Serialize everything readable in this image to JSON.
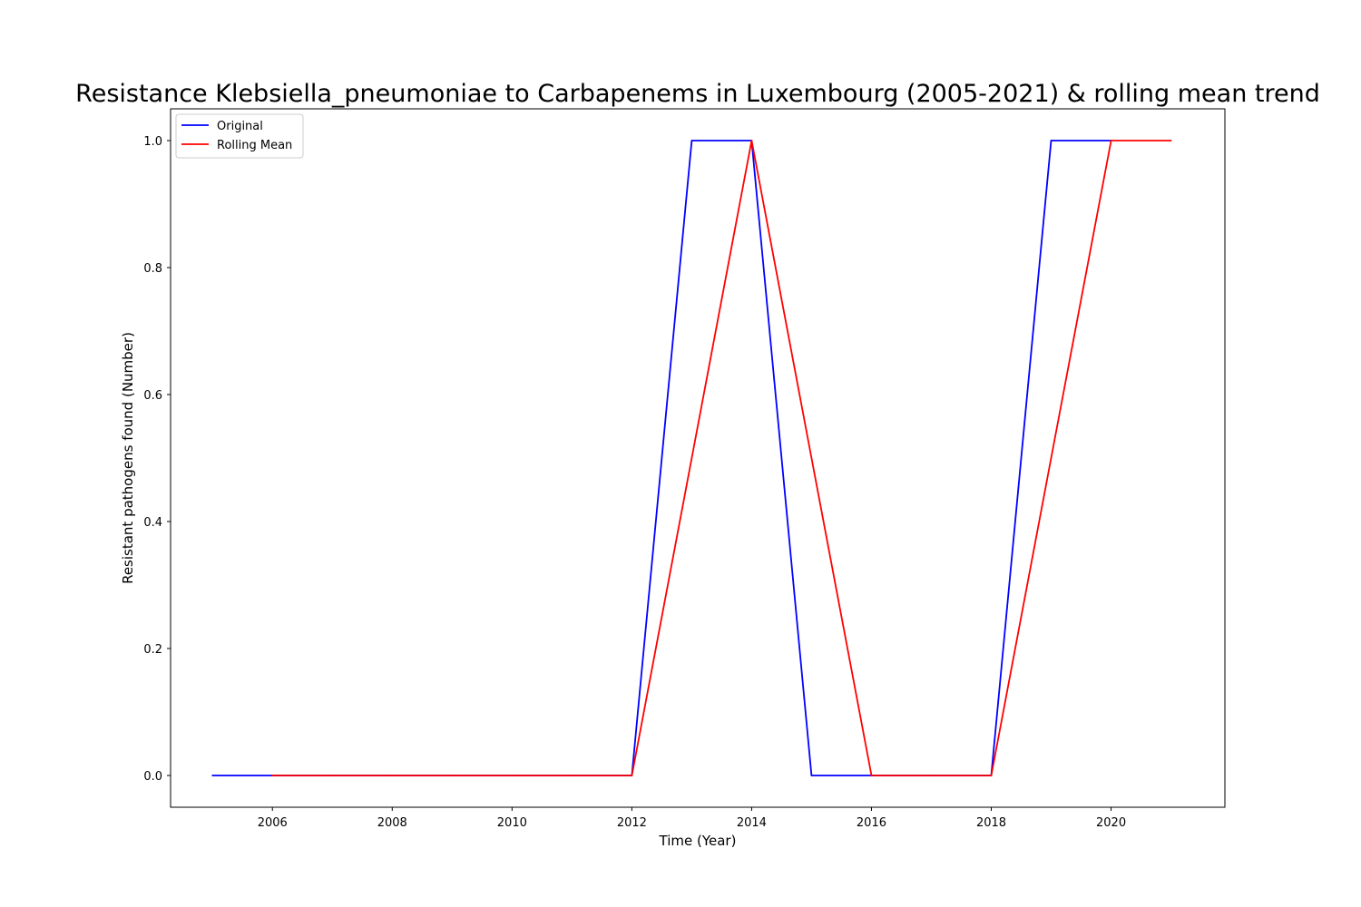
{
  "chart_data": {
    "type": "line",
    "title": "Resistance Klebsiella_pneumoniae to Carbapenems in Luxembourg (2005-2021) & rolling mean trend",
    "xlabel": "Time (Year)",
    "ylabel": "Resistant pathogens found (Number)",
    "xlim": [
      2004.3,
      2021.9
    ],
    "ylim": [
      -0.05,
      1.05
    ],
    "x_ticks": [
      2006,
      2008,
      2010,
      2012,
      2014,
      2016,
      2018,
      2020
    ],
    "x_tick_labels": [
      "2006",
      "2008",
      "2010",
      "2012",
      "2014",
      "2016",
      "2018",
      "2020"
    ],
    "y_ticks": [
      0.0,
      0.2,
      0.4,
      0.6,
      0.8,
      1.0
    ],
    "y_tick_labels": [
      "0.0",
      "0.2",
      "0.4",
      "0.6",
      "0.8",
      "1.0"
    ],
    "grid": false,
    "legend_position": "top-left",
    "series": [
      {
        "name": "Original",
        "color": "#0000ff",
        "x": [
          2005,
          2006,
          2007,
          2008,
          2009,
          2010,
          2011,
          2012,
          2013,
          2014,
          2015,
          2016,
          2017,
          2018,
          2019,
          2020
        ],
        "y": [
          0,
          0,
          0,
          0,
          0,
          0,
          0,
          0,
          1,
          1,
          0,
          0,
          0,
          0,
          1,
          1
        ]
      },
      {
        "name": "Rolling Mean",
        "color": "#ff0000",
        "x": [
          2006,
          2007,
          2008,
          2009,
          2010,
          2011,
          2012,
          2013,
          2014,
          2015,
          2016,
          2017,
          2018,
          2019,
          2020,
          2021
        ],
        "y": [
          0,
          0,
          0,
          0,
          0,
          0,
          0,
          0.5,
          1,
          0.5,
          0,
          0,
          0,
          0.5,
          1,
          1
        ]
      }
    ]
  }
}
